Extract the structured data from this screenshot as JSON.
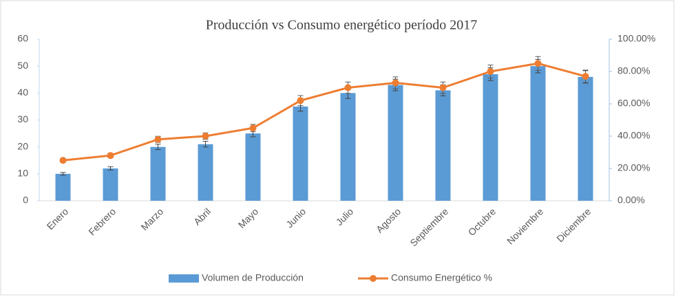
{
  "chart_data": {
    "type": "bar_line",
    "title": "Producción vs Consumo energético período 2017",
    "categories": [
      "Enero",
      "Febrero",
      "Marzo",
      "Abril",
      "Mayo",
      "Junio",
      "Julio",
      "Agosto",
      "Septiembre",
      "Octubre",
      "Noviembre",
      "Diciembre"
    ],
    "series": [
      {
        "name": "Volumen de Producción",
        "type": "bar",
        "color": "#5b9bd5",
        "values": [
          10,
          12,
          20,
          21,
          25,
          35,
          40,
          43,
          41,
          47,
          50,
          46
        ],
        "errors": [
          0.5,
          0.6,
          1,
          1.05,
          1.25,
          1.75,
          2,
          2.15,
          2.05,
          2.35,
          2.5,
          2.3
        ]
      },
      {
        "name": "Consumo Energético %",
        "type": "line",
        "axis": "y2",
        "color": "#ed7d31",
        "values": [
          25,
          28,
          38,
          40,
          45,
          62,
          70,
          73,
          70,
          80,
          85,
          77
        ],
        "errors": [
          1.25,
          1.4,
          1.9,
          2,
          2.25,
          3.1,
          3.5,
          3.65,
          3.5,
          4,
          4.25,
          3.85
        ]
      }
    ],
    "ylim": [
      0,
      60
    ],
    "yticks": [
      0,
      10,
      20,
      30,
      40,
      50,
      60
    ],
    "y2lim": [
      0,
      100
    ],
    "y2ticks": [
      {
        "value": 0,
        "label": "0.00%"
      },
      {
        "value": 20,
        "label": "20.00%"
      },
      {
        "value": 40,
        "label": "40.00%"
      },
      {
        "value": 60,
        "label": "60.00%"
      },
      {
        "value": 80,
        "label": "80.00%"
      },
      {
        "value": 100,
        "label": "100.00%"
      }
    ],
    "legend": "bottom"
  }
}
